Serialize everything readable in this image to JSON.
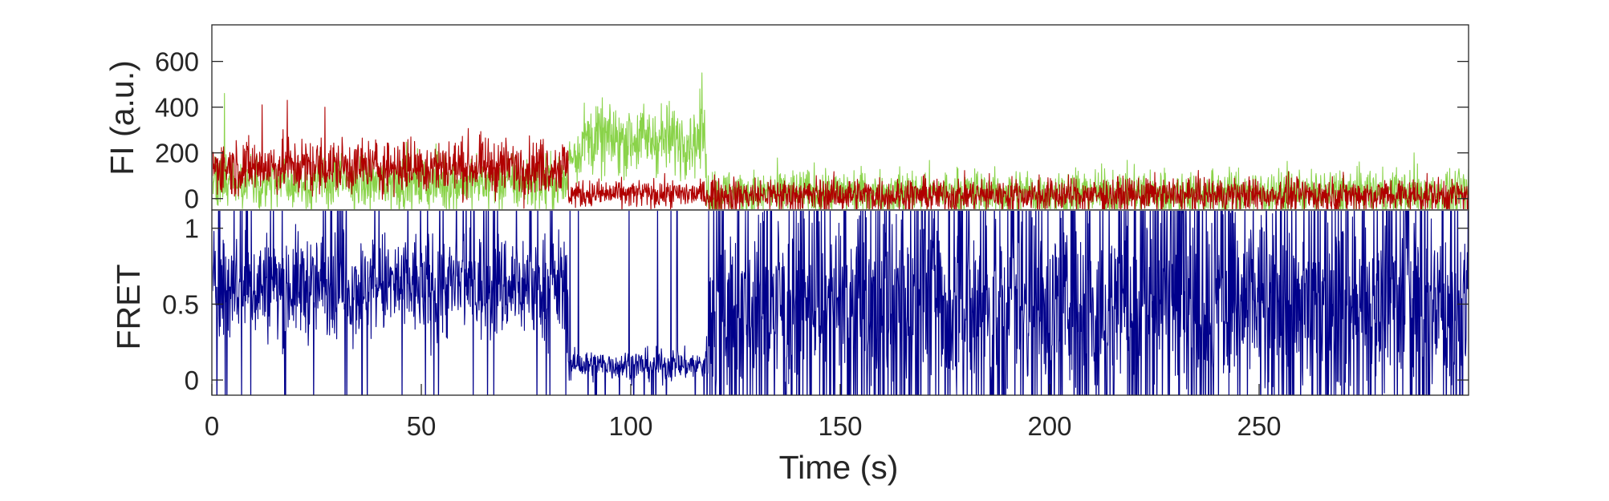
{
  "chart_data": [
    {
      "type": "line",
      "ylabel": "FI (a.u.)",
      "xlim": [
        0,
        300
      ],
      "ylim": [
        -50,
        760
      ],
      "yticks": [
        0,
        200,
        400,
        600
      ],
      "grid": false,
      "series": [
        {
          "color": "#8ad34a",
          "segments": [
            {
              "x_start": 0,
              "x_end": 85,
              "mean": 70,
              "noise": 120
            },
            {
              "x_start": 85,
              "x_end": 88,
              "mean": 200,
              "noise": 110
            },
            {
              "x_start": 88,
              "x_end": 118,
              "mean": 260,
              "noise": 150
            },
            {
              "x_start": 118,
              "x_end": 300,
              "mean": 25,
              "noise": 100
            }
          ],
          "peaks": [
            {
              "x": 117,
              "y": 550
            },
            {
              "x": 3,
              "y": 460
            },
            {
              "x": 287,
              "y": 200
            }
          ]
        },
        {
          "color": "#b00000",
          "segments": [
            {
              "x_start": 0,
              "x_end": 85,
              "mean": 140,
              "noise": 120
            },
            {
              "x_start": 85,
              "x_end": 118,
              "mean": 20,
              "noise": 60
            },
            {
              "x_start": 118,
              "x_end": 300,
              "mean": 15,
              "noise": 75
            }
          ],
          "peaks": [
            {
              "x": 18,
              "y": 430
            },
            {
              "x": 27,
              "y": 400
            },
            {
              "x": 12,
              "y": 410
            }
          ]
        }
      ]
    },
    {
      "type": "line",
      "ylabel": "FRET",
      "xlabel": "Time (s)",
      "xlim": [
        0,
        300
      ],
      "ylim": [
        -0.1,
        1.12
      ],
      "xticks": [
        0,
        50,
        100,
        150,
        200,
        250
      ],
      "yticks": [
        0,
        0.5,
        1
      ],
      "ytick_labels": [
        "0",
        "0.5",
        "1"
      ],
      "grid": false,
      "series": [
        {
          "color": "#00008b",
          "segments": [
            {
              "x_start": 0,
              "x_end": 85,
              "mean": 0.62,
              "noise": 0.35
            },
            {
              "x_start": 85,
              "x_end": 118,
              "mean": 0.1,
              "noise": 0.1
            },
            {
              "x_start": 118,
              "x_end": 300,
              "mean": 0.5,
              "noise": 0.6
            }
          ]
        }
      ]
    }
  ]
}
